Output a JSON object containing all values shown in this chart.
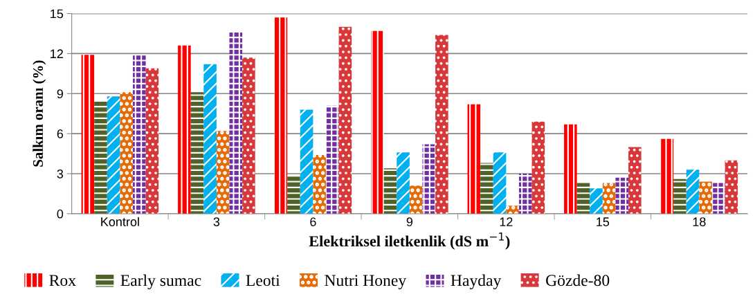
{
  "chart_data": {
    "type": "bar",
    "xlabel": "Elektriksel iletkenlik (dS m$^{−1}$)",
    "ylabel": "Salkım oranı (%)",
    "categories": [
      "Kontrol",
      "3",
      "6",
      "9",
      "12",
      "15",
      "18"
    ],
    "series": [
      {
        "name": "Rox",
        "color": "#ff0000",
        "values": [
          11.9,
          12.6,
          14.7,
          13.7,
          8.2,
          6.7,
          5.6
        ]
      },
      {
        "name": "Early sumac",
        "color": "#4f6228",
        "values": [
          8.4,
          9.1,
          2.8,
          3.4,
          3.8,
          2.3,
          2.6
        ]
      },
      {
        "name": "Leoti",
        "color": "#00b0f0",
        "values": [
          8.8,
          11.2,
          7.8,
          4.6,
          4.6,
          1.9,
          3.3
        ]
      },
      {
        "name": "Nutri Honey",
        "color": "#e36c09",
        "values": [
          9.1,
          6.2,
          4.4,
          2.1,
          0.6,
          2.3,
          2.4
        ]
      },
      {
        "name": "Hayday",
        "color": "#7030a0",
        "values": [
          11.9,
          13.6,
          8.1,
          5.2,
          3.0,
          2.7,
          2.3
        ]
      },
      {
        "name": "Gözde-80",
        "color": "#d9383a",
        "values": [
          10.9,
          11.7,
          14.0,
          13.4,
          6.9,
          5.0,
          4.0
        ]
      }
    ],
    "ylim": [
      0,
      15
    ],
    "yticks": [
      0,
      3,
      6,
      9,
      12,
      15
    ],
    "grid": "y",
    "legend": "bottom"
  }
}
